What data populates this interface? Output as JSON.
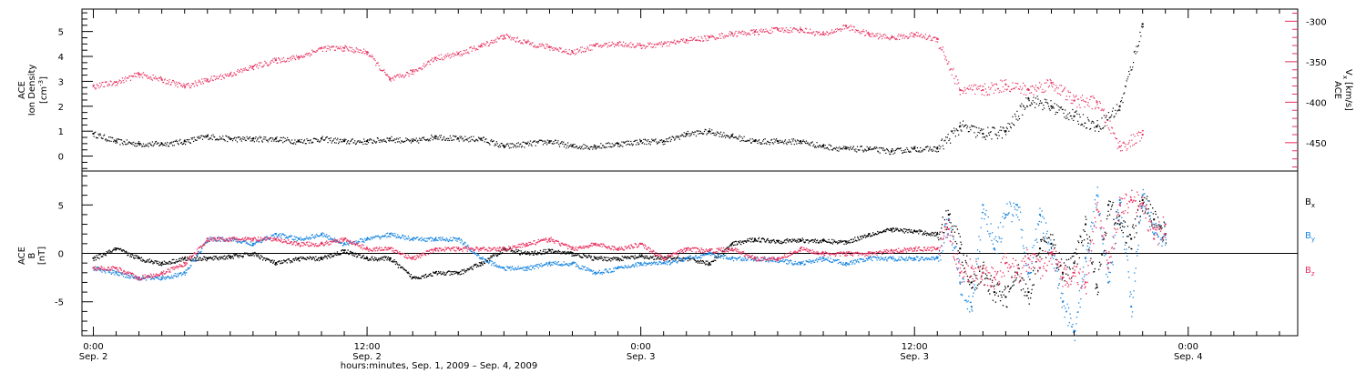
{
  "chart_data": [
    {
      "type": "scatter",
      "panel": "top",
      "ylabel_lines": [
        "ACE",
        "Ion Density"
      ],
      "ylabel_unit_base": "[cm",
      "ylabel_unit_sup": "-3",
      "ylabel_unit_end": "]",
      "y2label_main": "ACE",
      "y2label_prefix": "V",
      "y2label_sub": "x",
      "y2label_unit": "[km/s]",
      "ylim": [
        -0.6,
        5.9
      ],
      "y2lim": [
        -485,
        -285
      ],
      "yticks": [
        0,
        1,
        2,
        3,
        4,
        5
      ],
      "y2ticks": [
        -300,
        -350,
        -400,
        -450
      ],
      "series": [
        {
          "color": "#000000",
          "axis": "left",
          "x": [
            0,
            1,
            2,
            3,
            4,
            5,
            6,
            7,
            8,
            9,
            10,
            11,
            12,
            13,
            14,
            15,
            16,
            17,
            18,
            19,
            20,
            21,
            22,
            23,
            24,
            25,
            26,
            27,
            28,
            29,
            30,
            31,
            32,
            33,
            34,
            35,
            36,
            37,
            38,
            39,
            40,
            41,
            42,
            43,
            44,
            45,
            46
          ],
          "y": [
            0.9,
            0.6,
            0.5,
            0.5,
            0.6,
            0.8,
            0.7,
            0.7,
            0.7,
            0.6,
            0.7,
            0.6,
            0.6,
            0.7,
            0.6,
            0.8,
            0.7,
            0.7,
            0.4,
            0.5,
            0.6,
            0.4,
            0.4,
            0.5,
            0.6,
            0.6,
            0.9,
            1.0,
            0.8,
            0.6,
            0.6,
            0.6,
            0.4,
            0.3,
            0.3,
            0.2,
            0.3,
            0.3,
            1.2,
            0.9,
            1.0,
            2.3,
            2.0,
            1.6,
            1.2,
            2.0,
            5.3
          ]
        },
        {
          "color": "#e8305f",
          "axis": "right",
          "x": [
            0,
            1,
            2,
            3,
            4,
            5,
            6,
            7,
            8,
            9,
            10,
            11,
            12,
            13,
            14,
            15,
            16,
            17,
            18,
            19,
            20,
            21,
            22,
            23,
            24,
            25,
            26,
            27,
            28,
            29,
            30,
            31,
            32,
            33,
            34,
            35,
            36,
            37,
            38,
            39,
            40,
            41,
            42,
            43,
            44,
            45,
            46
          ],
          "y": [
            -380,
            -375,
            -365,
            -372,
            -380,
            -372,
            -365,
            -356,
            -348,
            -344,
            -333,
            -333,
            -338,
            -372,
            -362,
            -345,
            -340,
            -330,
            -318,
            -326,
            -332,
            -338,
            -330,
            -327,
            -330,
            -328,
            -323,
            -320,
            -315,
            -313,
            -310,
            -310,
            -316,
            -306,
            -316,
            -320,
            -316,
            -322,
            -385,
            -385,
            -378,
            -385,
            -376,
            -398,
            -400,
            -455,
            -440
          ]
        }
      ]
    },
    {
      "type": "scatter",
      "panel": "bottom",
      "ylabel_lines": [
        "ACE",
        "B"
      ],
      "ylabel_unit": "[nT]",
      "ylim": [
        -8.5,
        8.5
      ],
      "yticks": [
        5,
        0,
        -5
      ],
      "hline": 0,
      "xticks": [
        {
          "h": 0,
          "time": "0:00",
          "date": "Sep. 2"
        },
        {
          "h": 12,
          "time": "12:00",
          "date": "Sep. 2"
        },
        {
          "h": 24,
          "time": "0:00",
          "date": "Sep. 3"
        },
        {
          "h": 36,
          "time": "12:00",
          "date": "Sep. 3"
        },
        {
          "h": 48,
          "time": "0:00",
          "date": "Sep. 4"
        }
      ],
      "xlabel": "hours:minutes, Sep.  1, 2009 – Sep.  4, 2009",
      "xlim_hours": [
        -0.5,
        52.8
      ],
      "series": [
        {
          "name": "B",
          "sub": "x",
          "color": "#000000",
          "x": [
            0,
            1,
            2,
            3,
            4,
            5,
            6,
            7,
            8,
            9,
            10,
            11,
            12,
            13,
            14,
            15,
            16,
            17,
            18,
            19,
            20,
            21,
            22,
            23,
            24,
            25,
            26,
            27,
            28,
            29,
            30,
            31,
            32,
            33,
            34,
            35,
            36,
            37,
            37.5,
            38,
            38.5,
            39,
            39.5,
            40,
            40.5,
            41,
            41.5,
            42,
            42.5,
            43,
            43.5,
            44,
            44.5,
            45,
            45.5,
            46,
            46.5,
            47
          ],
          "y": [
            -0.5,
            0.5,
            -0.5,
            -1.0,
            -0.5,
            -0.5,
            -0.3,
            0.0,
            -1.0,
            -0.5,
            -0.5,
            0.3,
            -0.5,
            -0.5,
            -2.5,
            -2.0,
            -2.0,
            -1.0,
            0.5,
            0.0,
            0.3,
            0.0,
            -0.5,
            -0.5,
            -0.3,
            -0.5,
            -0.5,
            -1.0,
            1.0,
            1.5,
            1.3,
            1.4,
            1.3,
            1.2,
            2.0,
            2.5,
            2.3,
            2.0,
            4.0,
            0.5,
            -3.0,
            -2.0,
            -4.0,
            -4.5,
            -2.0,
            -4.0,
            0.5,
            1.0,
            -2.0,
            -1.0,
            3.0,
            -3.5,
            5.0,
            3.0,
            1.5,
            5.5,
            3.5,
            2.0
          ]
        },
        {
          "name": "B",
          "sub": "y",
          "color": "#1a86e0",
          "x": [
            0,
            1,
            2,
            3,
            4,
            5,
            6,
            7,
            8,
            9,
            10,
            11,
            12,
            13,
            14,
            15,
            16,
            17,
            18,
            19,
            20,
            21,
            22,
            23,
            24,
            25,
            26,
            27,
            28,
            29,
            30,
            31,
            32,
            33,
            34,
            35,
            36,
            37,
            37.5,
            38,
            38.5,
            39,
            39.5,
            40,
            40.5,
            41,
            41.5,
            42,
            42.5,
            43,
            43.5,
            44,
            44.5,
            45,
            45.5,
            46,
            46.5,
            47
          ],
          "y": [
            -1.5,
            -2.0,
            -2.5,
            -2.5,
            -2.0,
            1.5,
            1.5,
            1.0,
            2.0,
            1.5,
            2.0,
            1.0,
            1.5,
            2.0,
            1.5,
            1.5,
            1.5,
            -0.5,
            -1.5,
            -1.5,
            -1.0,
            -1.0,
            -2.0,
            -1.5,
            -1.0,
            -1.0,
            -0.5,
            0.0,
            -0.5,
            -0.5,
            -0.7,
            -1.0,
            -0.5,
            -1.0,
            -0.5,
            -0.5,
            -0.5,
            -0.5,
            3.5,
            -3.0,
            -5.5,
            5.0,
            0.5,
            4.0,
            5.0,
            -2.0,
            4.0,
            0.0,
            -5.0,
            -8.0,
            -0.5,
            6.0,
            -3.0,
            5.5,
            -5.5,
            6.0,
            2.0,
            2.0
          ]
        },
        {
          "name": "B",
          "sub": "z",
          "color": "#e8305f",
          "x": [
            0,
            1,
            2,
            3,
            4,
            5,
            6,
            7,
            8,
            9,
            10,
            11,
            12,
            13,
            14,
            15,
            16,
            17,
            18,
            19,
            20,
            21,
            22,
            23,
            24,
            25,
            26,
            27,
            28,
            29,
            30,
            31,
            32,
            33,
            34,
            35,
            36,
            37,
            37.5,
            38,
            38.5,
            39,
            39.5,
            40,
            40.5,
            41,
            41.5,
            42,
            42.5,
            43,
            43.5,
            44,
            44.5,
            45,
            45.5,
            46,
            46.5,
            47
          ],
          "y": [
            -1.5,
            -1.5,
            -2.5,
            -2.0,
            -1.0,
            1.5,
            1.5,
            1.5,
            1.5,
            1.0,
            1.0,
            1.5,
            0.5,
            0.5,
            -0.5,
            0.5,
            0.5,
            0.5,
            0.5,
            1.0,
            1.5,
            0.5,
            1.0,
            0.5,
            1.0,
            -0.5,
            0.5,
            0.3,
            0.5,
            -0.5,
            -0.5,
            0.5,
            0.0,
            0.0,
            0.0,
            0.3,
            0.5,
            0.5,
            2.5,
            -2.0,
            -1.5,
            -2.0,
            -2.5,
            -1.0,
            -2.0,
            -0.5,
            -1.5,
            0.0,
            -2.5,
            -2.0,
            -3.0,
            4.5,
            -1.0,
            5.0,
            5.5,
            5.0,
            1.5,
            3.0
          ]
        }
      ]
    }
  ]
}
